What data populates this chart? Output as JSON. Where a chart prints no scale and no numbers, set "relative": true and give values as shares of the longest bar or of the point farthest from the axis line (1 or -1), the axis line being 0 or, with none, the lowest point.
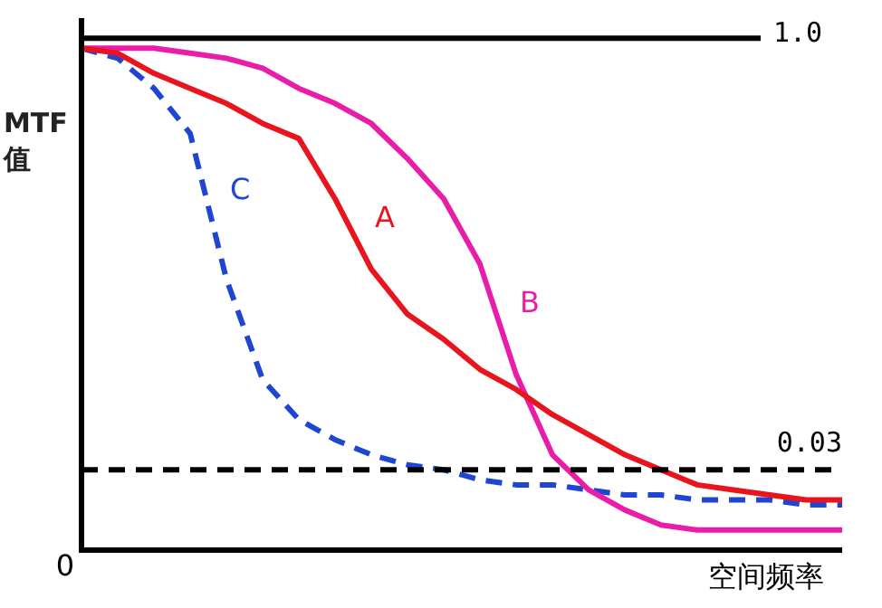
{
  "chart_data": {
    "type": "line",
    "relative": true,
    "ylabel": "MTF值",
    "xlabel": "空间频率",
    "annotations": [
      "0",
      "1.0",
      "0.03"
    ],
    "legend": false,
    "marker": "none",
    "categories": [
      null,
      null,
      null,
      null,
      null,
      null,
      null,
      null,
      null,
      null,
      null,
      null,
      null,
      null,
      null,
      null,
      null,
      null,
      null,
      null,
      null,
      null
    ],
    "series": [
      {
        "name": "A",
        "color": "#e8141e",
        "line_style": "solid",
        "values": [
          1.0,
          0.99,
          0.95,
          0.92,
          0.89,
          0.85,
          0.82,
          0.7,
          0.56,
          0.47,
          0.42,
          0.36,
          0.32,
          0.27,
          0.23,
          0.19,
          0.16,
          0.13,
          0.12,
          0.11,
          0.1,
          0.1
        ]
      },
      {
        "name": "B",
        "color": "#e81ea8",
        "line_style": "solid",
        "values": [
          1.0,
          1.0,
          1.0,
          0.99,
          0.98,
          0.96,
          0.92,
          0.89,
          0.85,
          0.78,
          0.7,
          0.57,
          0.35,
          0.19,
          0.12,
          0.08,
          0.05,
          0.04,
          0.04,
          0.04,
          0.04,
          0.04
        ]
      },
      {
        "name": "C",
        "color": "#1e46d2",
        "line_style": "dashed",
        "values": [
          1.0,
          0.98,
          0.92,
          0.83,
          0.54,
          0.34,
          0.26,
          0.22,
          0.19,
          0.17,
          0.16,
          0.14,
          0.13,
          0.13,
          0.12,
          0.11,
          0.11,
          0.1,
          0.1,
          0.1,
          0.09,
          0.09
        ]
      }
    ],
    "ref_lines": [
      {
        "axis": "y",
        "value": 1.02,
        "color": "#000000",
        "line_style": "solid"
      },
      {
        "axis": "y",
        "value": 0.16,
        "color": "#000000",
        "line_style": "dashed"
      }
    ]
  }
}
